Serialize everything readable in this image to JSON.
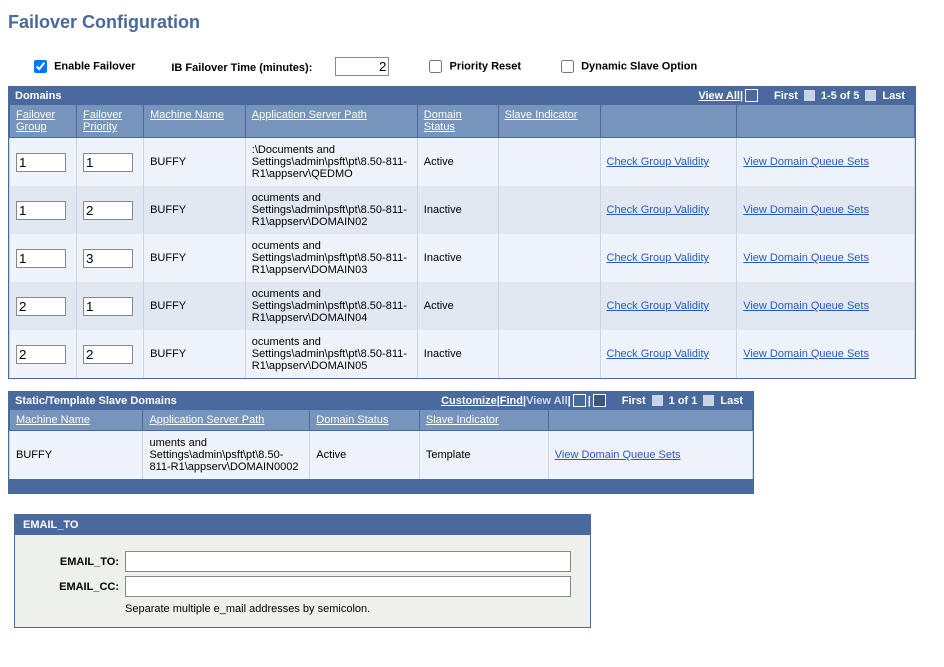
{
  "page_title": "Failover Configuration",
  "top": {
    "enable_failover": {
      "label": "Enable Failover",
      "checked": true
    },
    "ib_time": {
      "label": "IB Failover Time (minutes):",
      "value": "2"
    },
    "priority_reset": {
      "label": "Priority Reset",
      "checked": false
    },
    "dynamic_slave": {
      "label": "Dynamic Slave Option",
      "checked": false
    }
  },
  "domains_grid": {
    "title": "Domains",
    "view_all": "View All",
    "nav": {
      "first": "First",
      "range": "1-5 of 5",
      "last": "Last"
    },
    "cols": [
      "Failover Group",
      "Failover Priority",
      "Machine Name",
      "Application Server Path",
      "Domain Status",
      "Slave Indicator",
      "",
      ""
    ],
    "widths": [
      "55px",
      "55px",
      "100px",
      "165px",
      "75px",
      "100px",
      "145px",
      "195px"
    ],
    "link_check": "Check Group Validity",
    "link_view": "View Domain Queue Sets",
    "rows": [
      {
        "group": "1",
        "priority": "1",
        "machine": "BUFFY",
        "path": ":\\Documents and Settings\\admin\\psft\\pt\\8.50-811-R1\\appserv\\QEDMO",
        "status": "Active",
        "slave": ""
      },
      {
        "group": "1",
        "priority": "2",
        "machine": "BUFFY",
        "path": "ocuments and Settings\\admin\\psft\\pt\\8.50-811-R1\\appserv\\DOMAIN02",
        "status": "Inactive",
        "slave": ""
      },
      {
        "group": "1",
        "priority": "3",
        "machine": "BUFFY",
        "path": "ocuments and Settings\\admin\\psft\\pt\\8.50-811-R1\\appserv\\DOMAIN03",
        "status": "Inactive",
        "slave": ""
      },
      {
        "group": "2",
        "priority": "1",
        "machine": "BUFFY",
        "path": "ocuments and Settings\\admin\\psft\\pt\\8.50-811-R1\\appserv\\DOMAIN04",
        "status": "Active",
        "slave": ""
      },
      {
        "group": "2",
        "priority": "2",
        "machine": "BUFFY",
        "path": "ocuments and Settings\\admin\\psft\\pt\\8.50-811-R1\\appserv\\DOMAIN05",
        "status": "Inactive",
        "slave": ""
      }
    ]
  },
  "slave_grid": {
    "title": "Static/Template Slave Domains",
    "customize": "Customize",
    "find": "Find",
    "view_all": "View All",
    "nav": {
      "first": "First",
      "range": "1 of 1",
      "last": "Last"
    },
    "cols": [
      "Machine Name",
      "Application Server Path",
      "Domain Status",
      "Slave Indicator",
      ""
    ],
    "widths": [
      "125px",
      "155px",
      "100px",
      "120px",
      "200px"
    ],
    "link_view": "View Domain Queue Sets",
    "rows": [
      {
        "machine": "BUFFY",
        "path": "uments and Settings\\admin\\psft\\pt\\8.50-811-R1\\appserv\\DOMAIN0002",
        "status": "Active",
        "slave": "Template"
      }
    ]
  },
  "email": {
    "title": "EMAIL_TO",
    "to_label": "EMAIL_TO:",
    "to_value": "",
    "cc_label": "EMAIL_CC:",
    "cc_value": "",
    "hint": "Separate multiple e_mail addresses by semicolon."
  }
}
